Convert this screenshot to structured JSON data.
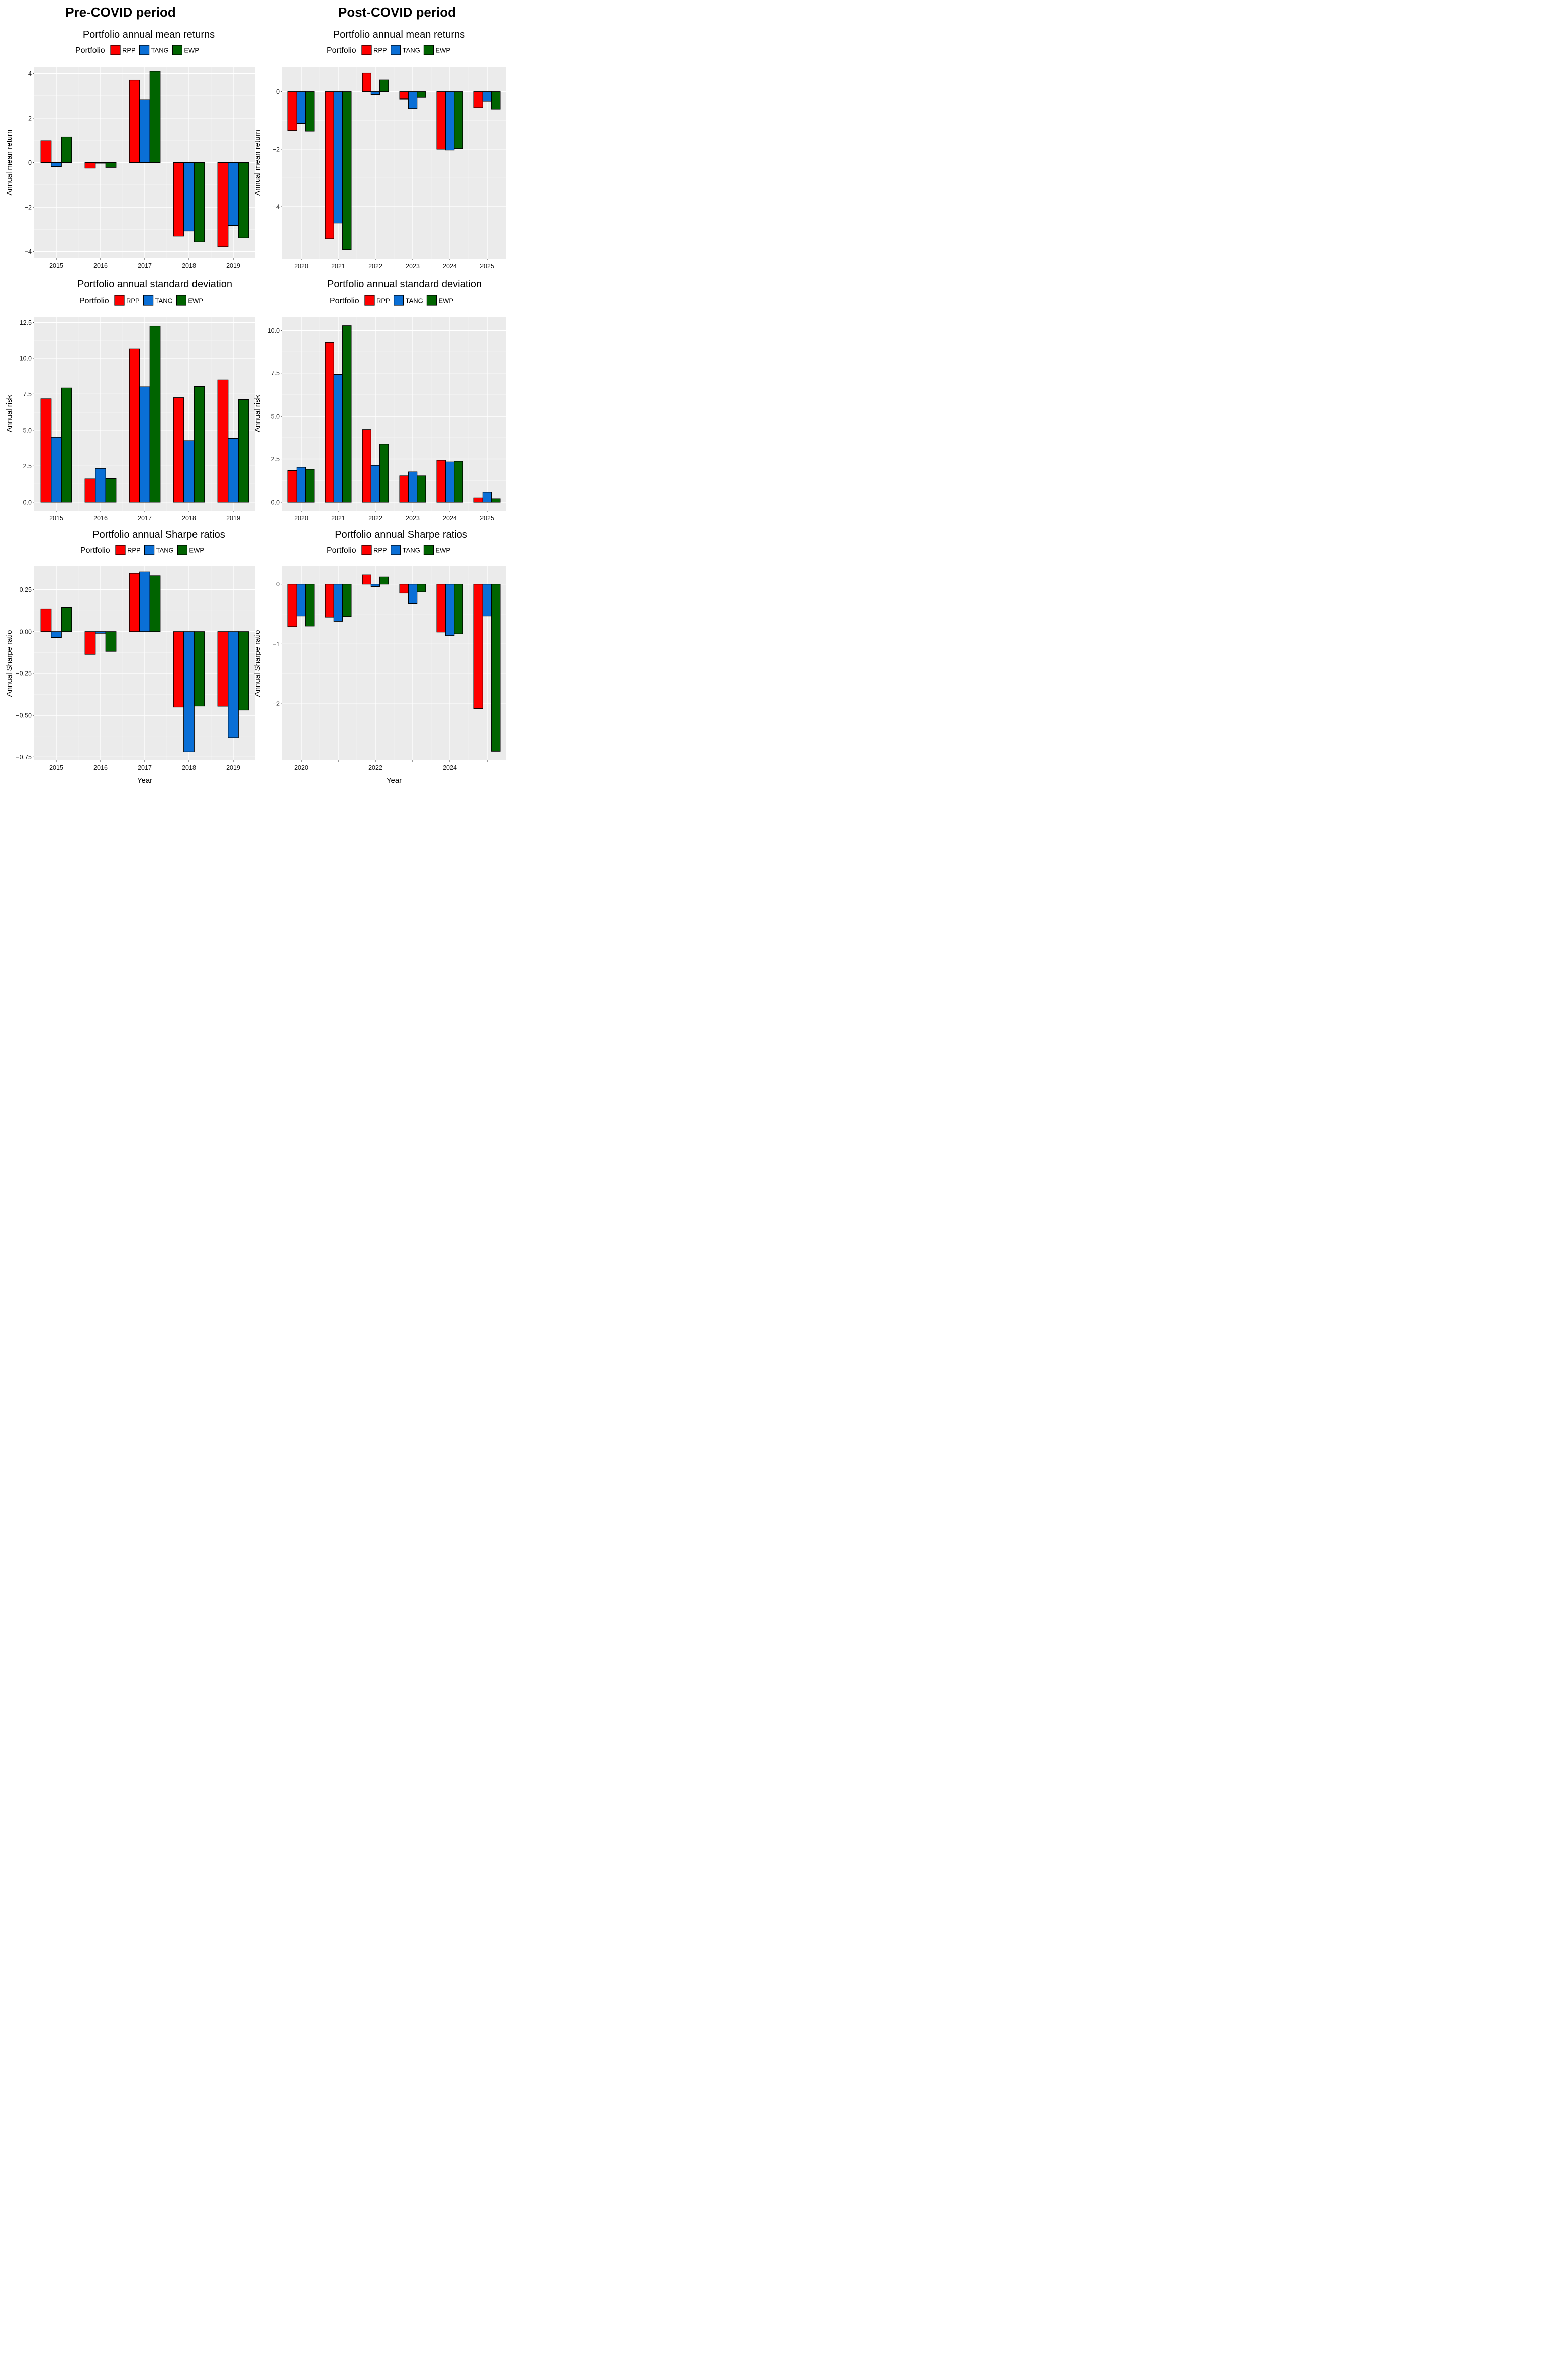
{
  "figure": {
    "left_period_title": "Pre-COVID period",
    "right_period_title": "Post-COVID period",
    "x_axis_title": "Year",
    "legend_title": "Portfolio",
    "legend_items": [
      "RPP",
      "TANG",
      "EWP"
    ],
    "colors": {
      "RPP": "#ff0000",
      "TANG": "#0a6fd6",
      "EWP": "#006400"
    }
  },
  "chart_data": [
    {
      "id": "pre-returns",
      "type": "bar",
      "period": "Pre-COVID",
      "title": "Portfolio annual mean returns",
      "xlabel": "",
      "ylabel": "Annual  mean return",
      "categories": [
        "2015",
        "2016",
        "2017",
        "2018",
        "2019"
      ],
      "x_tick_labels": [
        "2015",
        "2016",
        "2017",
        "2018",
        "2019"
      ],
      "series": [
        {
          "name": "RPP",
          "values": [
            0.98,
            -0.25,
            3.7,
            -3.3,
            -3.78
          ]
        },
        {
          "name": "TANG",
          "values": [
            -0.18,
            -0.03,
            2.83,
            -3.07,
            -2.82
          ]
        },
        {
          "name": "EWP",
          "values": [
            1.15,
            -0.22,
            4.1,
            -3.56,
            -3.38
          ]
        }
      ],
      "ylim": [
        -4.3,
        4.3
      ],
      "y_ticks": [
        -4,
        -2,
        0,
        2,
        4
      ],
      "y_tick_labels": [
        "−4",
        "−2",
        "0",
        "2",
        "4"
      ]
    },
    {
      "id": "post-returns",
      "type": "bar",
      "period": "Post-COVID",
      "title": "Portfolio annual mean returns",
      "xlabel": "",
      "ylabel": "Annual  mean return",
      "categories": [
        "2020",
        "2021",
        "2022",
        "2023",
        "2024",
        "2025"
      ],
      "x_tick_labels": [
        "2020",
        "2021",
        "2022",
        "2023",
        "2024",
        "2025"
      ],
      "series": [
        {
          "name": "RPP",
          "values": [
            -1.35,
            -5.12,
            0.65,
            -0.25,
            -2.0,
            -0.55
          ]
        },
        {
          "name": "TANG",
          "values": [
            -1.1,
            -4.57,
            -0.1,
            -0.58,
            -2.03,
            -0.32
          ]
        },
        {
          "name": "EWP",
          "values": [
            -1.37,
            -5.5,
            0.41,
            -0.2,
            -1.98,
            -0.6
          ]
        }
      ],
      "ylim": [
        -5.82,
        0.87
      ],
      "y_ticks": [
        -4,
        -2,
        0
      ],
      "y_tick_labels": [
        "−4",
        "−2",
        "0"
      ]
    },
    {
      "id": "pre-sd",
      "type": "bar",
      "period": "Pre-COVID",
      "title": "Portfolio annual standard deviation",
      "xlabel": "",
      "ylabel": "Annual risk",
      "categories": [
        "2015",
        "2016",
        "2017",
        "2018",
        "2019"
      ],
      "x_tick_labels": [
        "2015",
        "2016",
        "2017",
        "2018",
        "2019"
      ],
      "series": [
        {
          "name": "RPP",
          "values": [
            7.2,
            1.6,
            10.65,
            7.28,
            8.48
          ]
        },
        {
          "name": "TANG",
          "values": [
            4.5,
            2.33,
            8.0,
            4.26,
            4.42
          ]
        },
        {
          "name": "EWP",
          "values": [
            7.92,
            1.62,
            12.25,
            8.02,
            7.15
          ]
        }
      ],
      "ylim": [
        -0.6,
        12.9
      ],
      "y_ticks": [
        0,
        2.5,
        5,
        7.5,
        10,
        12.5
      ],
      "y_tick_labels": [
        "0.0",
        "2.5",
        "5.0",
        "7.5",
        "10.0",
        "12.5"
      ]
    },
    {
      "id": "post-sd",
      "type": "bar",
      "period": "Post-COVID",
      "title": "Portfolio annual standard deviation",
      "xlabel": "",
      "ylabel": "Annual risk",
      "categories": [
        "2020",
        "2021",
        "2022",
        "2023",
        "2024",
        "2025"
      ],
      "x_tick_labels": [
        "2020",
        "2021",
        "2022",
        "2023",
        "2024",
        "2025"
      ],
      "series": [
        {
          "name": "RPP",
          "values": [
            1.83,
            9.3,
            4.22,
            1.52,
            2.43,
            0.25
          ]
        },
        {
          "name": "TANG",
          "values": [
            2.02,
            7.42,
            2.13,
            1.75,
            2.33,
            0.56
          ]
        },
        {
          "name": "EWP",
          "values": [
            1.9,
            10.28,
            3.37,
            1.52,
            2.37,
            0.2
          ]
        }
      ],
      "ylim": [
        -0.5,
        10.8
      ],
      "y_ticks": [
        0,
        2.5,
        5,
        7.5,
        10
      ],
      "y_tick_labels": [
        "0.0",
        "2.5",
        "5.0",
        "7.5",
        "10.0"
      ]
    },
    {
      "id": "pre-sharpe",
      "type": "bar",
      "period": "Pre-COVID",
      "title": "Portfolio annual Sharpe ratios",
      "xlabel": "Year",
      "ylabel": "Annual Sharpe ratio",
      "categories": [
        "2015",
        "2016",
        "2017",
        "2018",
        "2019"
      ],
      "x_tick_labels": [
        "2015",
        "2016",
        "2017",
        "2018",
        "2019"
      ],
      "series": [
        {
          "name": "RPP",
          "values": [
            0.136,
            -0.136,
            0.348,
            -0.45,
            -0.445
          ]
        },
        {
          "name": "TANG",
          "values": [
            -0.035,
            -0.01,
            0.356,
            -0.72,
            -0.635
          ]
        },
        {
          "name": "EWP",
          "values": [
            0.145,
            -0.118,
            0.333,
            -0.444,
            -0.468
          ]
        }
      ],
      "ylim": [
        -0.77,
        0.39
      ],
      "y_ticks": [
        -0.75,
        -0.5,
        -0.25,
        0,
        0.25
      ],
      "y_tick_labels": [
        "−0.75",
        "−0.50",
        "−0.25",
        "0.00",
        "0.25"
      ]
    },
    {
      "id": "post-sharpe",
      "type": "bar",
      "period": "Post-COVID",
      "title": "Portfolio annual Sharpe ratios",
      "xlabel": "Year",
      "ylabel": "Annual Sharpe ratio",
      "categories": [
        "2020",
        "2021",
        "2022",
        "2023",
        "2024",
        "2025"
      ],
      "x_tick_labels": [
        "2020",
        "",
        "2022",
        "",
        "2024",
        ""
      ],
      "series": [
        {
          "name": "RPP",
          "values": [
            -0.71,
            -0.55,
            0.155,
            -0.15,
            -0.8,
            -2.08
          ]
        },
        {
          "name": "TANG",
          "values": [
            -0.53,
            -0.62,
            -0.04,
            -0.32,
            -0.86,
            -0.53
          ]
        },
        {
          "name": "EWP",
          "values": [
            -0.7,
            -0.54,
            0.12,
            -0.13,
            -0.83,
            -2.8
          ]
        }
      ],
      "ylim": [
        -2.95,
        0.3
      ],
      "y_ticks": [
        -2,
        -1,
        0
      ],
      "y_tick_labels": [
        "−2",
        "−1",
        "0"
      ]
    }
  ]
}
